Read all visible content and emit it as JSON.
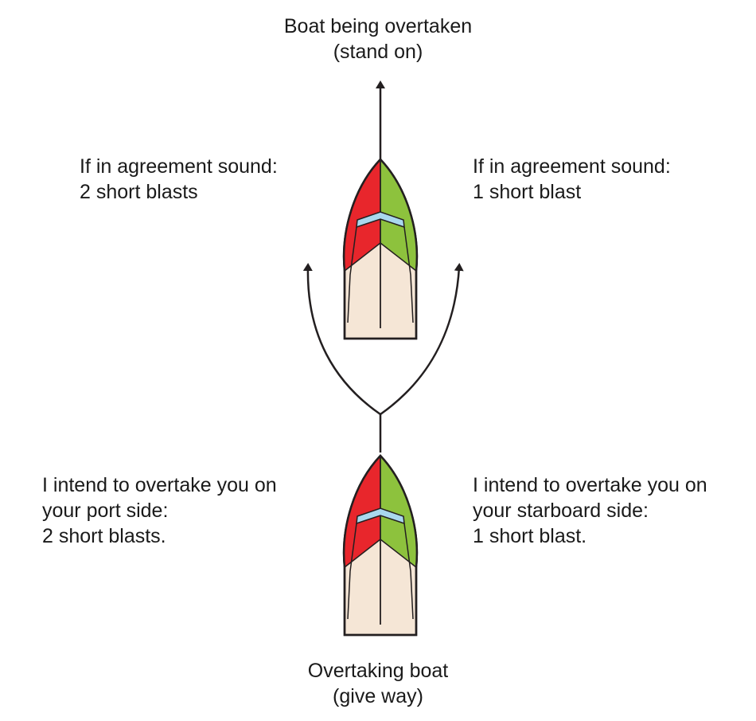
{
  "top_label": {
    "line1": "Boat being overtaken",
    "line2": "(stand on)"
  },
  "bottom_label": {
    "line1": "Overtaking boat",
    "line2": "(give way)"
  },
  "agree_left": {
    "line1": "If in agreement sound:",
    "line2": "2 short blasts"
  },
  "agree_right": {
    "line1": "If in agreement sound:",
    "line2": "1 short blast"
  },
  "intend_left": {
    "line1": "I intend to overtake you on",
    "line2": "your port side:",
    "line3": "2 short blasts."
  },
  "intend_right": {
    "line1": "I intend to overtake you on",
    "line2": "your starboard side:",
    "line3": "1 short blast."
  },
  "colors": {
    "port": "#e8262c",
    "starboard": "#8dc23d",
    "windscreen": "#a9d8ee",
    "deck": "#f5e6d6",
    "outline": "#231f20"
  }
}
